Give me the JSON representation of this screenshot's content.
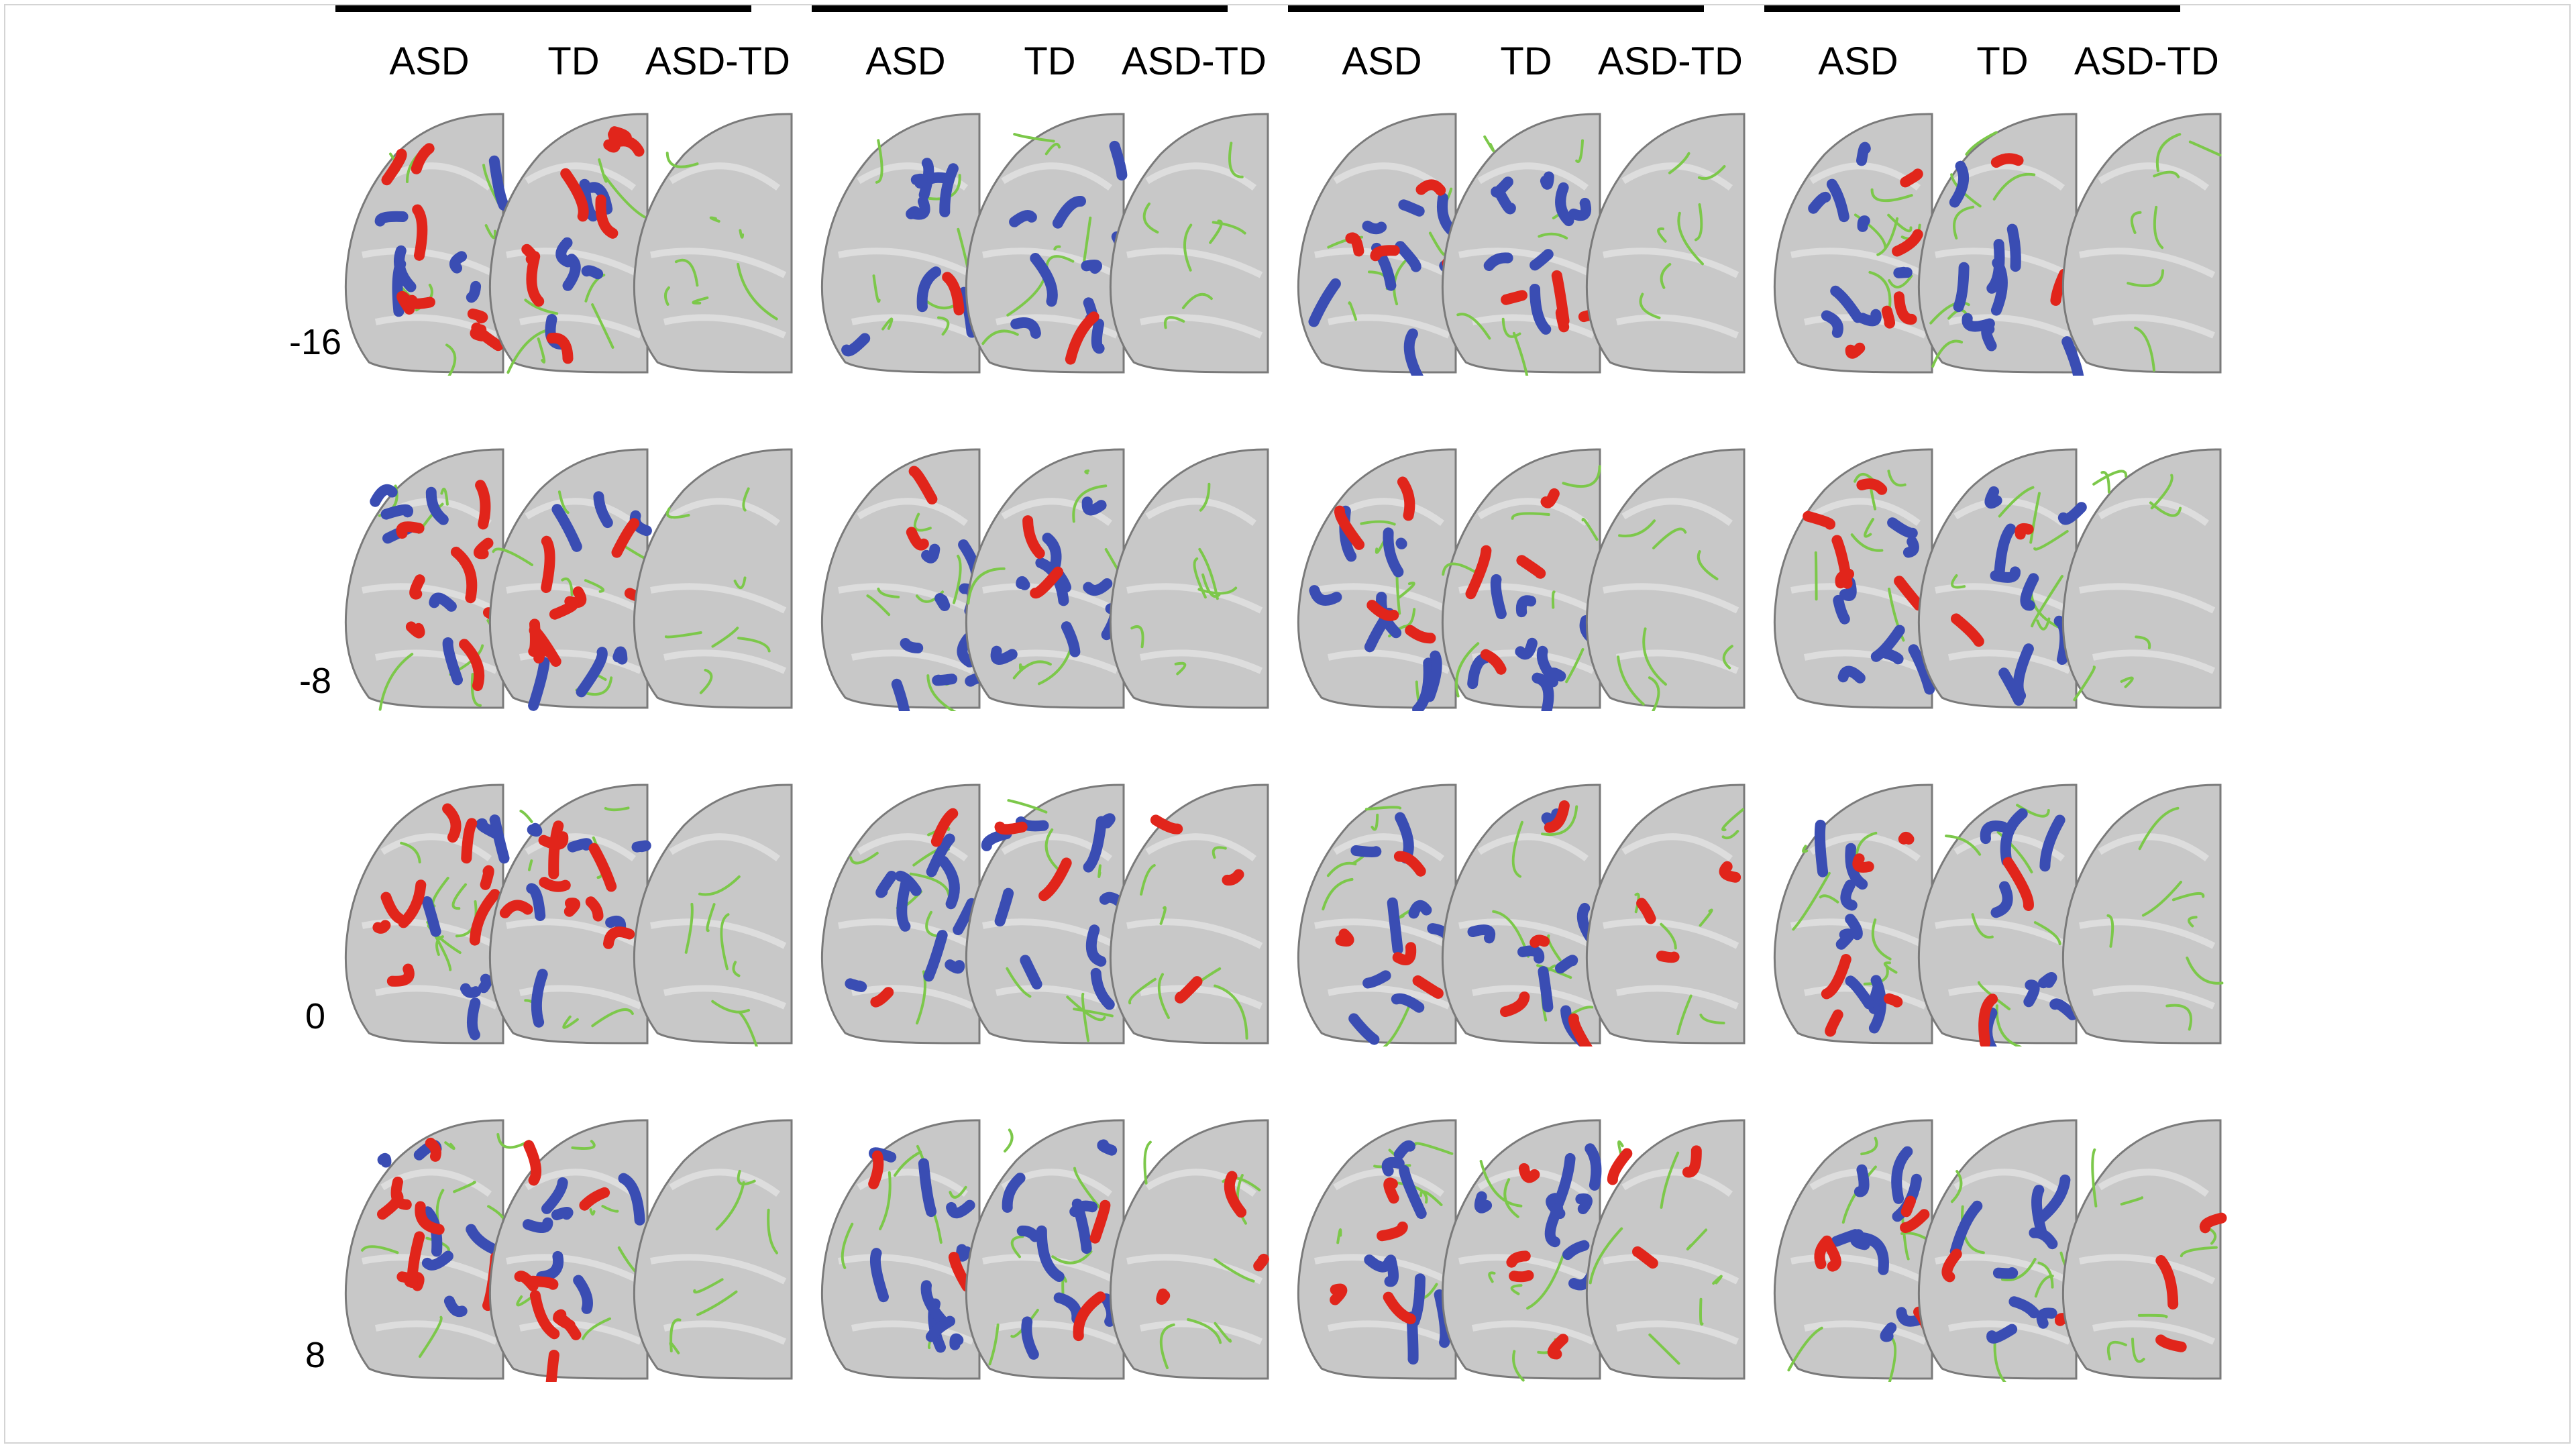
{
  "figure": {
    "groups": [
      {
        "columns": [
          "ASD",
          "TD",
          "ASD-TD"
        ]
      },
      {
        "columns": [
          "ASD",
          "TD",
          "ASD-TD"
        ]
      },
      {
        "columns": [
          "ASD",
          "TD",
          "ASD-TD"
        ]
      },
      {
        "columns": [
          "ASD",
          "TD",
          "ASD-TD"
        ]
      }
    ],
    "slice_labels": [
      "-16",
      "-8",
      "0",
      "8"
    ],
    "colors": {
      "brain_gray": "#c8c8c8",
      "brain_outline": "#7a7a7a",
      "skeleton_green": "#7cc84a",
      "positive_red": "#e1251b",
      "negative_blue": "#3a4db3",
      "overlap_orange": "#f0a020"
    }
  }
}
